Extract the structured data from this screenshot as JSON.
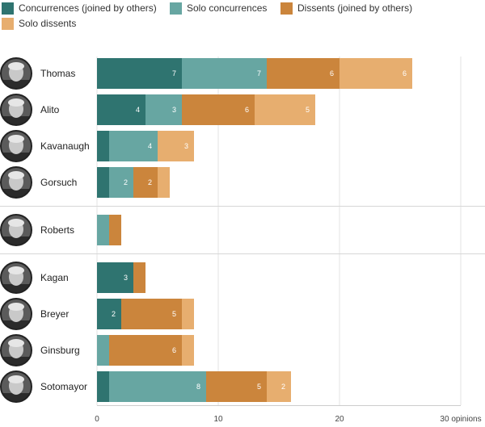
{
  "chart_data": {
    "type": "bar",
    "orientation": "horizontal",
    "stacked": true,
    "x_unit": "opinions",
    "xlim": [
      0,
      30
    ],
    "x_ticks": [
      "0",
      "10",
      "20",
      "30 opinions"
    ],
    "grid": true,
    "legend_position": "top-left",
    "categories": [
      "Thomas",
      "Alito",
      "Kavanaugh",
      "Gorsuch",
      "Roberts",
      "Kagan",
      "Breyer",
      "Ginsburg",
      "Sotomayor"
    ],
    "groups": [
      [
        "Thomas",
        "Alito",
        "Kavanaugh",
        "Gorsuch"
      ],
      [
        "Roberts"
      ],
      [
        "Kagan",
        "Breyer",
        "Ginsburg",
        "Sotomayor"
      ]
    ],
    "series": [
      {
        "name": "Concurrences (joined by others)",
        "color": "#2f7470",
        "values": [
          7,
          4,
          1,
          1,
          0,
          3,
          2,
          0,
          1
        ],
        "labels": [
          "7",
          "4",
          "",
          "",
          "",
          "3",
          "2",
          "",
          ""
        ]
      },
      {
        "name": "Solo concurrences",
        "color": "#67a6a2",
        "values": [
          7,
          3,
          4,
          2,
          1,
          0,
          0,
          1,
          8
        ],
        "labels": [
          "7",
          "3",
          "4",
          "2",
          "",
          "",
          "",
          "",
          "8"
        ]
      },
      {
        "name": "Dissents (joined by others)",
        "color": "#cb853c",
        "values": [
          6,
          6,
          0,
          2,
          1,
          1,
          5,
          6,
          5
        ],
        "labels": [
          "6",
          "6",
          "",
          "2",
          "",
          "",
          "5",
          "6",
          "5"
        ]
      },
      {
        "name": "Solo dissents",
        "color": "#e7ae6f",
        "values": [
          6,
          5,
          3,
          1,
          0,
          0,
          1,
          1,
          2
        ],
        "labels": [
          "6",
          "5",
          "3",
          "",
          "",
          "",
          "",
          "",
          "2"
        ]
      }
    ]
  }
}
